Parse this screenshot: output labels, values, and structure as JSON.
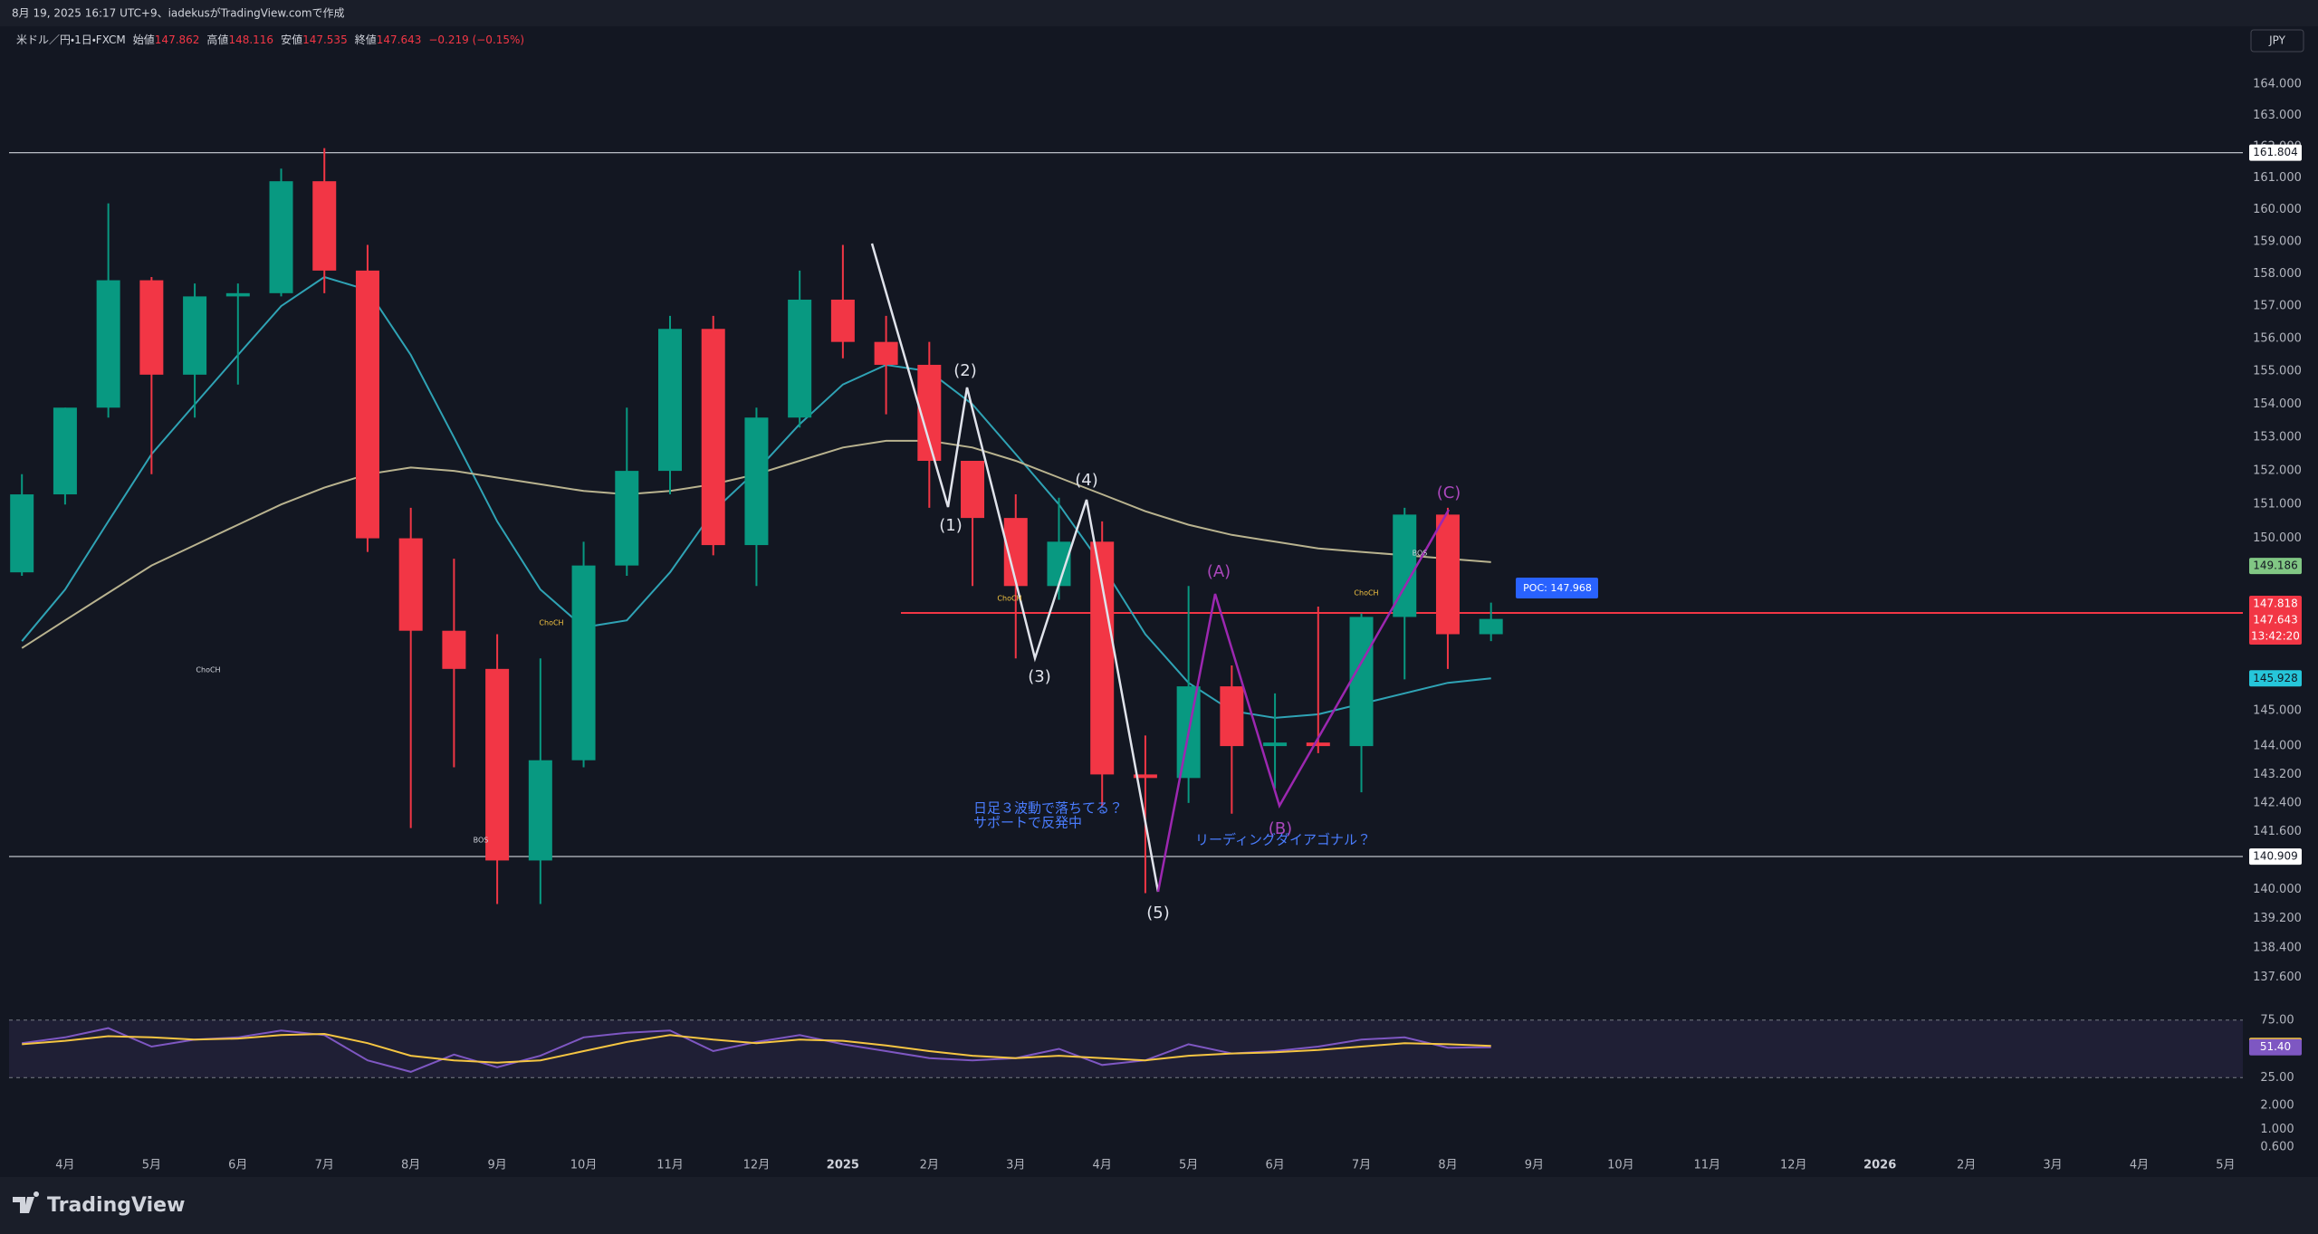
{
  "header": {
    "text": "8月 19, 2025 16:17 UTC+9、iadekusがTradingView.comで作成"
  },
  "currency": "JPY",
  "brand": "TradingView",
  "legend": {
    "symbol": "米ドル／円・1日・FXCM",
    "fields": [
      {
        "label": "始値",
        "value": 147.862
      },
      {
        "label": "高値",
        "value": 148.116
      },
      {
        "label": "安値",
        "value": 147.535
      },
      {
        "label": "終値",
        "value": 147.643
      }
    ],
    "change": "−0.219 (−0.15%)"
  },
  "chart_data": [
    {
      "type": "candlestick",
      "categories": [
        null,
        "4月",
        null,
        "5月",
        null,
        "6月",
        null,
        "7月",
        null,
        "8月",
        null,
        "9月",
        null,
        "10月",
        null,
        "11月",
        null,
        "12月",
        null,
        "2025",
        null,
        "2月",
        null,
        "3月",
        null,
        "4月",
        null,
        "5月",
        null,
        "6月",
        null,
        "7月",
        null,
        "8月",
        null,
        "9月",
        null,
        "10月",
        null,
        "11月",
        null,
        "12月",
        null,
        "2026",
        null,
        "2月",
        null,
        "3月",
        null,
        "4月",
        null,
        "5月"
      ],
      "open": [
        149.0,
        151.3,
        153.9,
        157.8,
        154.9,
        157.3,
        157.4,
        160.9,
        158.1,
        150.0,
        147.3,
        146.2,
        140.8,
        143.6,
        149.2,
        152.0,
        156.3,
        149.8,
        153.6,
        157.2,
        155.9,
        155.2,
        152.3,
        150.6,
        148.6,
        149.9,
        143.2,
        143.1,
        145.7,
        144.0,
        144.1,
        144.0,
        147.7,
        150.7,
        147.2,
        null,
        null,
        null,
        null,
        null,
        null,
        null,
        null,
        null,
        null,
        null,
        null,
        null,
        null,
        null,
        null,
        null
      ],
      "high": [
        151.9,
        153.9,
        160.2,
        157.9,
        157.7,
        157.7,
        161.3,
        161.95,
        158.9,
        150.9,
        149.4,
        147.2,
        146.5,
        149.9,
        153.9,
        156.7,
        156.7,
        153.9,
        158.1,
        158.9,
        156.7,
        155.9,
        152.3,
        151.3,
        151.2,
        150.5,
        144.3,
        148.6,
        146.3,
        145.5,
        148.0,
        147.8,
        150.9,
        150.9,
        148.116,
        null,
        null,
        null,
        null,
        null,
        null,
        null,
        null,
        null,
        null,
        null,
        null,
        null,
        null,
        null,
        null,
        null
      ],
      "low": [
        148.9,
        151.0,
        153.6,
        151.9,
        153.6,
        154.6,
        157.3,
        157.4,
        149.6,
        141.7,
        143.4,
        139.6,
        139.6,
        143.4,
        148.9,
        151.3,
        149.5,
        148.6,
        153.3,
        155.4,
        153.7,
        150.9,
        148.6,
        146.5,
        148.2,
        142.3,
        139.9,
        142.4,
        142.1,
        142.8,
        143.8,
        142.7,
        145.9,
        146.2,
        147.0,
        null,
        null,
        null,
        null,
        null,
        null,
        null,
        null,
        null,
        null,
        null,
        null,
        null,
        null,
        null,
        null,
        null
      ],
      "close": [
        151.3,
        153.9,
        157.8,
        154.9,
        157.3,
        157.4,
        160.9,
        158.1,
        150.0,
        147.3,
        146.2,
        140.8,
        143.6,
        149.2,
        152.0,
        156.3,
        149.8,
        153.6,
        157.2,
        155.9,
        155.2,
        152.3,
        150.6,
        148.6,
        149.9,
        143.2,
        143.1,
        145.7,
        144.0,
        144.1,
        144.0,
        147.7,
        150.7,
        147.2,
        147.643,
        null,
        null,
        null,
        null,
        null,
        null,
        null,
        null,
        null,
        null,
        null,
        null,
        null,
        null,
        null,
        null,
        null
      ],
      "up_color": "#089981",
      "down_color": "#f23645",
      "log_scale": true,
      "grid": false,
      "ylim": [
        136.86,
        165.05
      ],
      "yticks": [
        {
          "value": 164,
          "label": "164.000"
        },
        {
          "value": 163,
          "label": "163.000"
        },
        {
          "value": 162,
          "label": "162.000"
        },
        {
          "value": 161,
          "label": "161.000"
        },
        {
          "value": 160,
          "label": "160.000"
        },
        {
          "value": 159,
          "label": "159.000"
        },
        {
          "value": 158,
          "label": "158.000"
        },
        {
          "value": 157,
          "label": "157.000"
        },
        {
          "value": 156,
          "label": "156.000"
        },
        {
          "value": 155,
          "label": "155.000"
        },
        {
          "value": 154,
          "label": "154.000"
        },
        {
          "value": 153,
          "label": "153.000"
        },
        {
          "value": 152,
          "label": "152.000"
        },
        {
          "value": 151,
          "label": "151.000"
        },
        {
          "value": 150,
          "label": "150.000"
        },
        {
          "value": 145,
          "label": "145.000"
        },
        {
          "value": 144,
          "label": "144.000"
        },
        {
          "value": 143.2,
          "label": "143.200"
        },
        {
          "value": 142.4,
          "label": "142.400"
        },
        {
          "value": 141.6,
          "label": "141.600"
        },
        {
          "value": 140,
          "label": "140.000"
        },
        {
          "value": 139.2,
          "label": "139.200"
        },
        {
          "value": 138.4,
          "label": "138.400"
        },
        {
          "value": 137.6,
          "label": "137.600"
        }
      ],
      "overlays": [
        {
          "color": "#2fa3b5",
          "values": [
            147.0,
            148.5,
            150.5,
            152.5,
            154.0,
            155.5,
            157.0,
            157.9,
            157.5,
            155.5,
            153.0,
            150.5,
            148.5,
            147.4,
            147.6,
            149.0,
            150.8,
            152.0,
            153.4,
            154.6,
            155.2,
            155.0,
            154.0,
            152.5,
            151.0,
            149.2,
            147.2,
            145.8,
            145.0,
            144.8,
            144.9,
            145.2,
            145.5,
            145.8,
            145.93,
            null,
            null,
            null,
            null,
            null,
            null,
            null,
            null,
            null,
            null,
            null,
            null,
            null,
            null,
            null,
            null,
            null
          ]
        },
        {
          "color": "#b9b38f",
          "values": [
            146.8,
            147.6,
            148.4,
            149.2,
            149.8,
            150.4,
            151.0,
            151.5,
            151.9,
            152.1,
            152.0,
            151.8,
            151.6,
            151.4,
            151.3,
            151.4,
            151.6,
            151.9,
            152.3,
            152.7,
            152.9,
            152.9,
            152.7,
            152.3,
            151.8,
            151.3,
            150.8,
            150.4,
            150.1,
            149.9,
            149.7,
            149.6,
            149.5,
            149.4,
            149.3,
            null,
            null,
            null,
            null,
            null,
            null,
            null,
            null,
            null,
            null,
            null,
            null,
            null,
            null,
            null,
            null,
            null
          ]
        }
      ],
      "levels": [
        {
          "value": 161.804,
          "color": "#d1d4dc"
        },
        {
          "value": 140.909,
          "color": "#d1d4dc"
        },
        {
          "value": 147.818,
          "color": "#f23645"
        }
      ],
      "badges": [
        {
          "value": 161.804,
          "bg": "#ffffff",
          "fg": "#131722"
        },
        {
          "value": 149.186,
          "bg": "#81c784",
          "fg": "#131722"
        },
        {
          "value": 145.928,
          "bg": "#26c6da",
          "fg": "#131722"
        },
        {
          "value": 140.909,
          "bg": "#ffffff",
          "fg": "#131722"
        }
      ],
      "last_badges": [
        {
          "value": 147.818,
          "bg": "#f23645",
          "fg": "#ffffff"
        },
        {
          "value": 147.643,
          "bg": "#f23645",
          "fg": "#ffffff"
        }
      ],
      "countdown": "13:42:20",
      "poc": "POC: 147.968",
      "wave_labels": [
        "(1)",
        "(2)",
        "(3)",
        "(4)",
        "(5)",
        "(A)",
        "(B)",
        "(C)"
      ],
      "notes": [
        "日足３波動で落ちてる？",
        "サポートで反発中",
        "リーディングダイアゴナル？"
      ],
      "structure_labels": [
        "ChoCH",
        "ChoCH",
        "ChoCH",
        "ChoCH",
        "BOS",
        "BOS"
      ]
    },
    {
      "type": "line",
      "series": [
        {
          "color": "#7e57c2",
          "values": [
            55,
            60,
            68,
            52,
            58,
            60,
            66,
            62,
            40,
            30,
            45,
            34,
            44,
            60,
            64,
            66,
            48,
            56,
            62,
            54,
            48,
            42,
            40,
            42,
            50,
            36,
            40,
            54,
            46,
            48,
            52,
            58,
            60,
            51,
            51.4
          ]
        },
        {
          "color": "#f5c542",
          "values": [
            54,
            57,
            61,
            60,
            58,
            59,
            62,
            63,
            55,
            44,
            40,
            38,
            40,
            48,
            56,
            62,
            58,
            55,
            58,
            57,
            53,
            48,
            44,
            42,
            44,
            42,
            40,
            44,
            46,
            47,
            49,
            52,
            55,
            54,
            52.58
          ]
        }
      ],
      "ylim": [
        0,
        100
      ],
      "yticks": [
        {
          "value": 75,
          "label": "75.00"
        },
        {
          "value": 25,
          "label": "25.00"
        }
      ],
      "badges": [
        {
          "value": 52.58,
          "bg": "#f5c542",
          "fg": "#131722"
        },
        {
          "value": 51.4,
          "label": "51.40",
          "bg": "#7e57c2",
          "fg": "#ffffff"
        }
      ]
    },
    {
      "type": "scale",
      "log_scale": true,
      "ylim": [
        0.427,
        3.04
      ],
      "yticks": [
        {
          "value": 2,
          "label": "2.000"
        },
        {
          "value": 1,
          "label": "1.000"
        },
        {
          "value": 0.6,
          "label": "0.600"
        }
      ]
    }
  ]
}
